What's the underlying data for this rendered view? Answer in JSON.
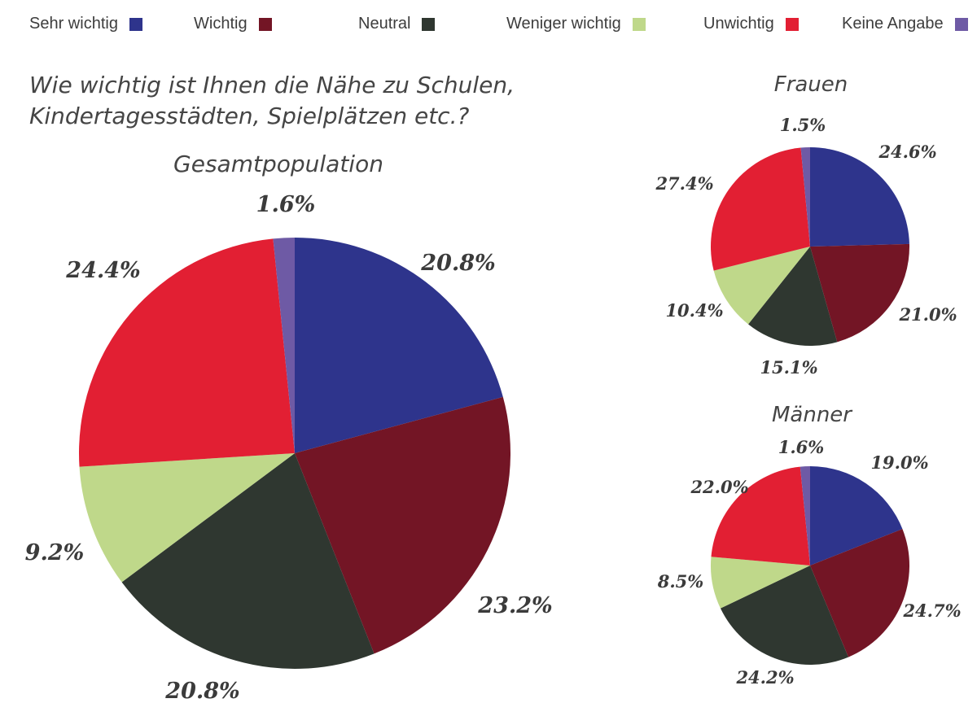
{
  "legend": [
    {
      "label": "Sehr wichtig",
      "color": "#2e348c"
    },
    {
      "label": "Wichtig",
      "color": "#731525"
    },
    {
      "label": "Neutral",
      "color": "#2f3730"
    },
    {
      "label": "Weniger wichtig",
      "color": "#bfd88a"
    },
    {
      "label": "Unwichtig",
      "color": "#e21f33"
    },
    {
      "label": "Keine Angabe",
      "color": "#6e5aa5"
    }
  ],
  "question": "Wie wichtig ist Ihnen die Nähe zu Schulen, Kindertagesstädten, Spielplätzen etc.?",
  "chart_data": [
    {
      "type": "pie",
      "title": "Gesamtpopulation",
      "categories": [
        "Sehr wichtig",
        "Wichtig",
        "Neutral",
        "Weniger wichtig",
        "Unwichtig",
        "Keine Angabe"
      ],
      "values": [
        20.8,
        23.2,
        20.8,
        9.2,
        24.4,
        1.6
      ],
      "labels": [
        "20.8%",
        "23.2%",
        "20.8%",
        "9.2%",
        "24.4%",
        "1.6%"
      ]
    },
    {
      "type": "pie",
      "title": "Frauen",
      "categories": [
        "Sehr wichtig",
        "Wichtig",
        "Neutral",
        "Weniger wichtig",
        "Unwichtig",
        "Keine Angabe"
      ],
      "values": [
        24.6,
        21.0,
        15.1,
        10.4,
        27.4,
        1.5
      ],
      "labels": [
        "24.6%",
        "21.0%",
        "15.1%",
        "10.4%",
        "27.4%",
        "1.5%"
      ]
    },
    {
      "type": "pie",
      "title": "Männer",
      "categories": [
        "Sehr wichtig",
        "Wichtig",
        "Neutral",
        "Weniger wichtig",
        "Unwichtig",
        "Keine Angabe"
      ],
      "values": [
        19.0,
        24.7,
        24.2,
        8.5,
        22.0,
        1.6
      ],
      "labels": [
        "19.0%",
        "24.7%",
        "24.2%",
        "8.5%",
        "22.0%",
        "1.6%"
      ]
    }
  ]
}
